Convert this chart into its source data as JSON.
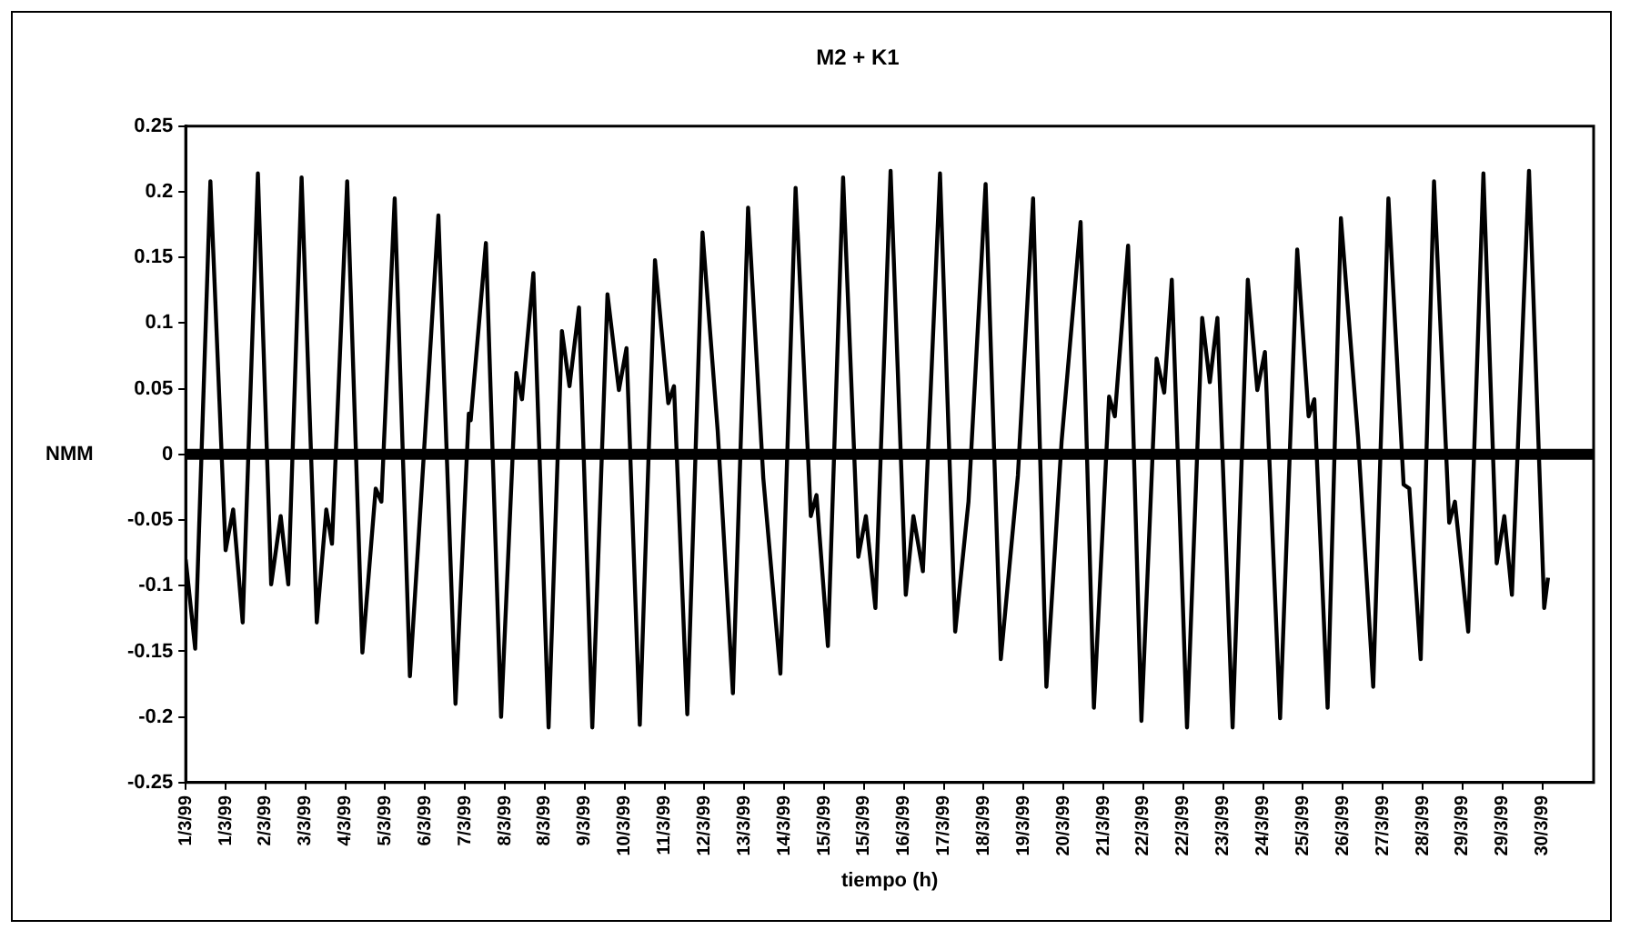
{
  "chart_data": {
    "type": "line",
    "title": "M2 + K1",
    "xlabel": "tiempo (h)",
    "ylabel": "NMM",
    "series": [
      {
        "color": "#000000",
        "x": [
          "1999-03-01T00:00",
          "1999-03-01T05:00",
          "1999-03-01T13:00",
          "1999-03-01T21:00",
          "1999-03-02T01:00",
          "1999-03-02T06:00",
          "1999-03-02T14:00",
          "1999-03-02T21:00",
          "1999-03-03T02:00",
          "1999-03-03T06:00",
          "1999-03-03T13:00",
          "1999-03-03T21:00",
          "1999-03-04T02:00",
          "1999-03-04T05:00",
          "1999-03-04T13:00",
          "1999-03-04T21:00",
          "1999-03-05T04:00",
          "1999-03-05T07:00",
          "1999-03-05T14:00",
          "1999-03-05T22:00",
          "1999-03-06T05:00",
          "1999-03-06T13:00",
          "1999-03-06T22:00",
          "1999-03-07T05:00",
          "1999-03-07T06:00",
          "1999-03-07T14:00",
          "1999-03-07T22:00",
          "1999-03-08T06:00",
          "1999-03-08T09:00",
          "1999-03-08T15:00",
          "1999-03-08T23:00",
          "1999-03-09T06:00",
          "1999-03-09T10:00",
          "1999-03-09T15:00",
          "1999-03-09T22:00",
          "1999-03-10T06:00",
          "1999-03-10T12:00",
          "1999-03-10T16:00",
          "1999-03-10T23:00",
          "1999-03-11T07:00",
          "1999-03-11T14:00",
          "1999-03-11T17:00",
          "1999-03-12T00:00",
          "1999-03-12T08:00",
          "1999-03-12T16:00",
          "1999-03-13T00:00",
          "1999-03-13T08:00",
          "1999-03-13T16:00",
          "1999-03-14T01:00",
          "1999-03-14T09:00",
          "1999-03-14T17:00",
          "1999-03-14T20:00",
          "1999-03-15T02:00",
          "1999-03-15T10:00",
          "1999-03-15T18:00",
          "1999-03-15T22:00",
          "1999-03-16T03:00",
          "1999-03-16T11:00",
          "1999-03-16T19:00",
          "1999-03-16T23:00",
          "1999-03-17T04:00",
          "1999-03-17T13:00",
          "1999-03-17T21:00",
          "1999-03-18T04:00",
          "1999-03-18T13:00",
          "1999-03-18T21:00",
          "1999-03-19T06:00",
          "1999-03-19T14:00",
          "1999-03-19T21:00",
          "1999-03-20T05:00",
          "1999-03-20T15:00",
          "1999-03-20T22:00",
          "1999-03-21T06:00",
          "1999-03-21T09:00",
          "1999-03-21T16:00",
          "1999-03-21T23:00",
          "1999-03-22T07:00",
          "1999-03-22T11:00",
          "1999-03-22T15:00",
          "1999-03-22T23:00",
          "1999-03-23T07:00",
          "1999-03-23T11:00",
          "1999-03-23T15:00",
          "1999-03-23T23:00",
          "1999-03-24T07:00",
          "1999-03-24T12:00",
          "1999-03-24T16:00",
          "1999-03-25T00:00",
          "1999-03-25T09:00",
          "1999-03-25T15:00",
          "1999-03-25T18:00",
          "1999-03-26T01:00",
          "1999-03-26T08:00",
          "1999-03-26T17:00",
          "1999-03-27T01:00",
          "1999-03-27T09:00",
          "1999-03-27T17:00",
          "1999-03-27T20:00",
          "1999-03-28T02:00",
          "1999-03-28T09:00",
          "1999-03-28T17:00",
          "1999-03-28T20:00",
          "1999-03-29T03:00",
          "1999-03-29T11:00",
          "1999-03-29T18:00",
          "1999-03-29T22:00",
          "1999-03-30T02:00",
          "1999-03-30T11:00",
          "1999-03-30T19:00",
          "1999-03-30T21:00"
        ],
        "values": [
          -0.08,
          -0.148,
          0.208,
          -0.073,
          -0.042,
          -0.128,
          0.214,
          -0.099,
          -0.047,
          -0.099,
          0.211,
          -0.128,
          -0.042,
          -0.068,
          0.208,
          -0.151,
          -0.026,
          -0.036,
          0.195,
          -0.169,
          -0.008,
          0.182,
          -0.19,
          0.031,
          0.026,
          0.161,
          -0.2,
          0.062,
          0.042,
          0.138,
          -0.208,
          0.094,
          0.052,
          0.112,
          -0.208,
          0.122,
          0.049,
          0.081,
          -0.206,
          0.148,
          0.039,
          0.052,
          -0.198,
          0.169,
          0.018,
          -0.182,
          0.188,
          -0.018,
          -0.167,
          0.203,
          -0.047,
          -0.031,
          -0.146,
          0.211,
          -0.078,
          -0.047,
          -0.117,
          0.216,
          -0.107,
          -0.047,
          -0.089,
          0.214,
          -0.135,
          -0.036,
          0.206,
          -0.156,
          -0.016,
          0.195,
          -0.177,
          0.01,
          0.177,
          -0.193,
          0.044,
          0.029,
          0.159,
          -0.203,
          0.073,
          0.047,
          0.133,
          -0.208,
          0.104,
          0.055,
          0.104,
          -0.208,
          0.133,
          0.049,
          0.078,
          -0.201,
          0.156,
          0.029,
          0.042,
          -0.193,
          0.18,
          0.013,
          -0.177,
          0.195,
          -0.023,
          -0.026,
          -0.156,
          0.208,
          -0.052,
          -0.036,
          -0.135,
          0.214,
          -0.083,
          -0.047,
          -0.107,
          0.216,
          -0.117,
          -0.094
        ]
      }
    ],
    "xlim": [
      "1999-03-01T00:00",
      "1999-03-31T21:00"
    ],
    "xticks": [
      {
        "value": "1999-03-01T00:00",
        "label": "1/3/99"
      },
      {
        "value": "1999-03-01T21:00",
        "label": "1/3/99"
      },
      {
        "value": "1999-03-02T18:00",
        "label": "2/3/99"
      },
      {
        "value": "1999-03-03T15:00",
        "label": "3/3/99"
      },
      {
        "value": "1999-03-04T12:00",
        "label": "4/3/99"
      },
      {
        "value": "1999-03-05T09:00",
        "label": "5/3/99"
      },
      {
        "value": "1999-03-06T06:00",
        "label": "6/3/99"
      },
      {
        "value": "1999-03-07T03:00",
        "label": "7/3/99"
      },
      {
        "value": "1999-03-08T00:00",
        "label": "8/3/99"
      },
      {
        "value": "1999-03-08T21:00",
        "label": "8/3/99"
      },
      {
        "value": "1999-03-09T18:00",
        "label": "9/3/99"
      },
      {
        "value": "1999-03-10T15:00",
        "label": "10/3/99"
      },
      {
        "value": "1999-03-11T12:00",
        "label": "11/3/99"
      },
      {
        "value": "1999-03-12T09:00",
        "label": "12/3/99"
      },
      {
        "value": "1999-03-13T06:00",
        "label": "13/3/99"
      },
      {
        "value": "1999-03-14T03:00",
        "label": "14/3/99"
      },
      {
        "value": "1999-03-15T00:00",
        "label": "15/3/99"
      },
      {
        "value": "1999-03-15T21:00",
        "label": "15/3/99"
      },
      {
        "value": "1999-03-16T18:00",
        "label": "16/3/99"
      },
      {
        "value": "1999-03-17T15:00",
        "label": "17/3/99"
      },
      {
        "value": "1999-03-18T12:00",
        "label": "18/3/99"
      },
      {
        "value": "1999-03-19T09:00",
        "label": "19/3/99"
      },
      {
        "value": "1999-03-20T06:00",
        "label": "20/3/99"
      },
      {
        "value": "1999-03-21T03:00",
        "label": "21/3/99"
      },
      {
        "value": "1999-03-22T00:00",
        "label": "22/3/99"
      },
      {
        "value": "1999-03-22T21:00",
        "label": "22/3/99"
      },
      {
        "value": "1999-03-23T18:00",
        "label": "23/3/99"
      },
      {
        "value": "1999-03-24T15:00",
        "label": "24/3/99"
      },
      {
        "value": "1999-03-25T12:00",
        "label": "25/3/99"
      },
      {
        "value": "1999-03-26T09:00",
        "label": "26/3/99"
      },
      {
        "value": "1999-03-27T06:00",
        "label": "27/3/99"
      },
      {
        "value": "1999-03-28T03:00",
        "label": "28/3/99"
      },
      {
        "value": "1999-03-29T00:00",
        "label": "29/3/99"
      },
      {
        "value": "1999-03-29T21:00",
        "label": "29/3/99"
      },
      {
        "value": "1999-03-30T18:00",
        "label": "30/3/99"
      }
    ],
    "ylim": [
      -0.25,
      0.25
    ],
    "yticks": [
      -0.25,
      -0.2,
      -0.15,
      -0.1,
      -0.05,
      0,
      0.05,
      0.1,
      0.15,
      0.2,
      0.25
    ],
    "ref_lines": [
      {
        "axis": "y",
        "value": 0,
        "color": "#000000"
      }
    ],
    "grid": false,
    "legend": false,
    "marker": "none",
    "line_style": "solid"
  }
}
